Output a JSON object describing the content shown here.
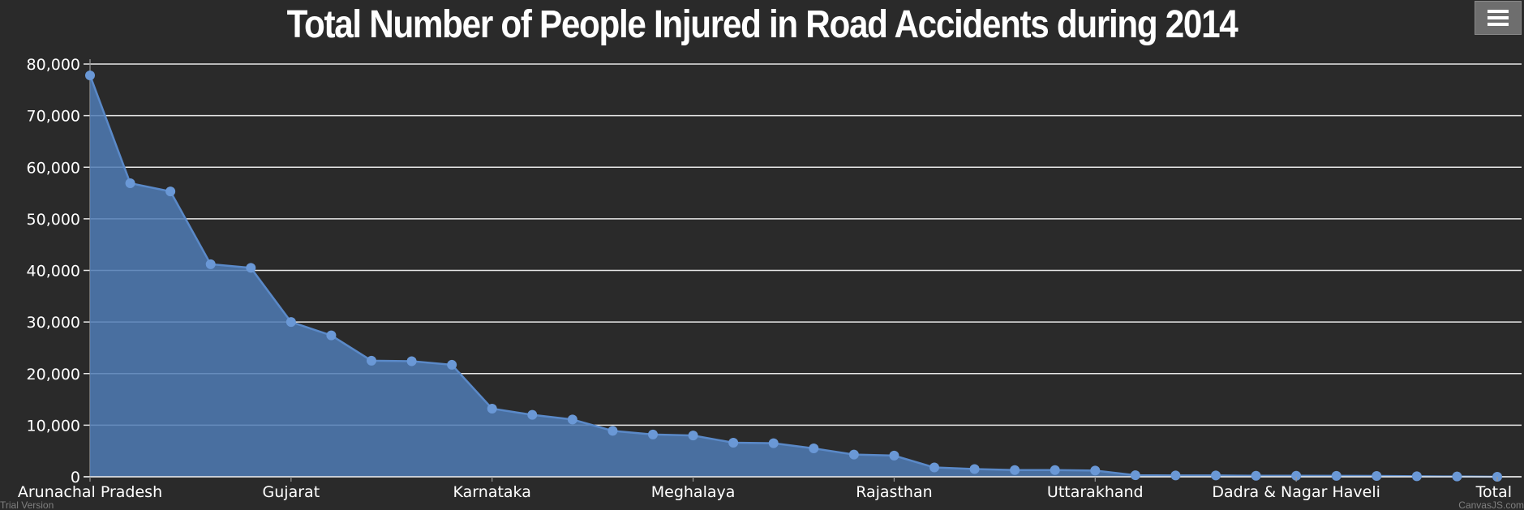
{
  "header": {
    "menu_icon": "hamburger-menu-icon"
  },
  "watermarks": {
    "left": "Trial Version",
    "right": "CanvasJS.com"
  },
  "colors": {
    "background": "#2a2a2a",
    "area_fill": "#4f7bb5",
    "line": "#5a89c8",
    "marker": "#6a98d6",
    "grid": "#e8e8e8",
    "text": "#ffffff"
  },
  "chart_data": {
    "type": "area",
    "title": "Total Number of People Injured in Road Accidents during 2014",
    "xlabel": "",
    "ylabel": "",
    "ylim": [
      0,
      80000
    ],
    "yticks": [
      0,
      10000,
      20000,
      30000,
      40000,
      50000,
      60000,
      70000,
      80000
    ],
    "ytick_labels": [
      "0",
      "10,000",
      "20,000",
      "30,000",
      "40,000",
      "50,000",
      "60,000",
      "70,000",
      "80,000"
    ],
    "xtick_labels": [
      {
        "index": 0,
        "label": "Arunachal Pradesh"
      },
      {
        "index": 5,
        "label": "Gujarat"
      },
      {
        "index": 10,
        "label": "Karnataka"
      },
      {
        "index": 15,
        "label": "Meghalaya"
      },
      {
        "index": 20,
        "label": "Rajasthan"
      },
      {
        "index": 25,
        "label": "Uttarakhand"
      },
      {
        "index": 30,
        "label": "Dadra & Nagar Haveli"
      },
      {
        "index": 35,
        "label": "Total"
      }
    ],
    "grid": true,
    "legend": "none",
    "values": [
      77800,
      56900,
      55300,
      41200,
      40500,
      30000,
      27400,
      22500,
      22400,
      21700,
      13200,
      12000,
      11100,
      8900,
      8200,
      8000,
      6600,
      6500,
      5500,
      4300,
      4100,
      1800,
      1500,
      1300,
      1300,
      1200,
      300,
      250,
      250,
      200,
      200,
      180,
      150,
      100,
      50,
      0
    ]
  }
}
